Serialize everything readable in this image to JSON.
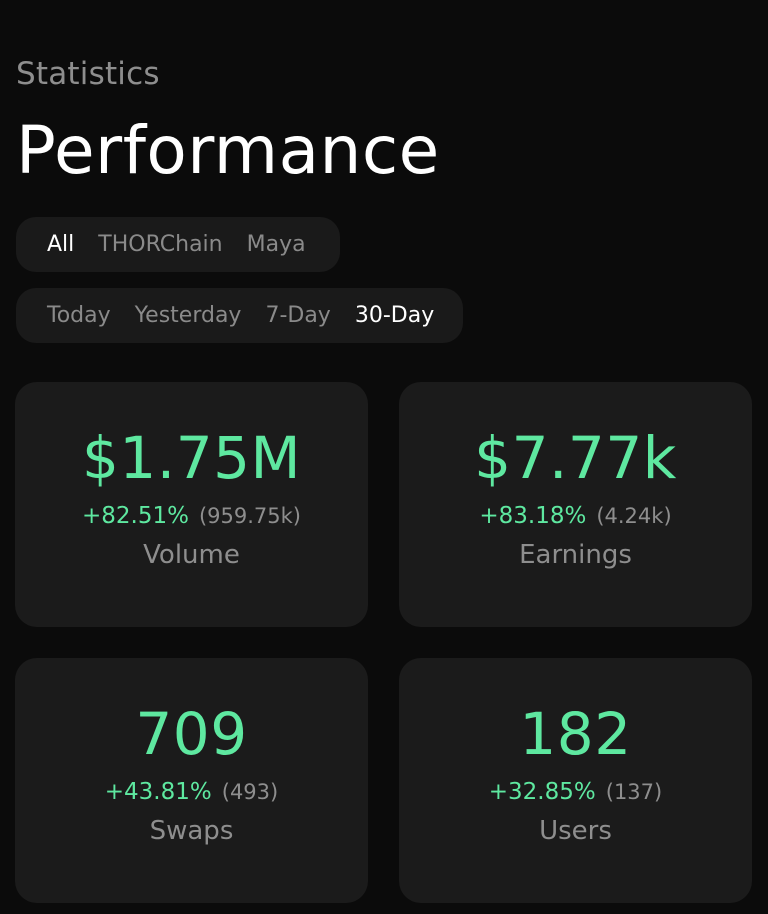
{
  "header": {
    "subtitle": "Statistics",
    "title": "Performance"
  },
  "chain_filter": {
    "options": [
      "All",
      "THORChain",
      "Maya"
    ],
    "selected": "All"
  },
  "time_filter": {
    "options": [
      "Today",
      "Yesterday",
      "7-Day",
      "30-Day"
    ],
    "selected": "30-Day"
  },
  "cards": [
    {
      "value": "$1.75M",
      "change": "+82.51%",
      "previous": "(959.75k)",
      "label": "Volume"
    },
    {
      "value": "$7.77k",
      "change": "+83.18%",
      "previous": "(4.24k)",
      "label": "Earnings"
    },
    {
      "value": "709",
      "change": "+43.81%",
      "previous": "(493)",
      "label": "Swaps"
    },
    {
      "value": "182",
      "change": "+32.85%",
      "previous": "(137)",
      "label": "Users"
    }
  ],
  "colors": {
    "background": "#0b0b0b",
    "card": "#1b1b1b",
    "accent_green": "#5ee8a0",
    "muted_text": "#8e8e8e"
  }
}
